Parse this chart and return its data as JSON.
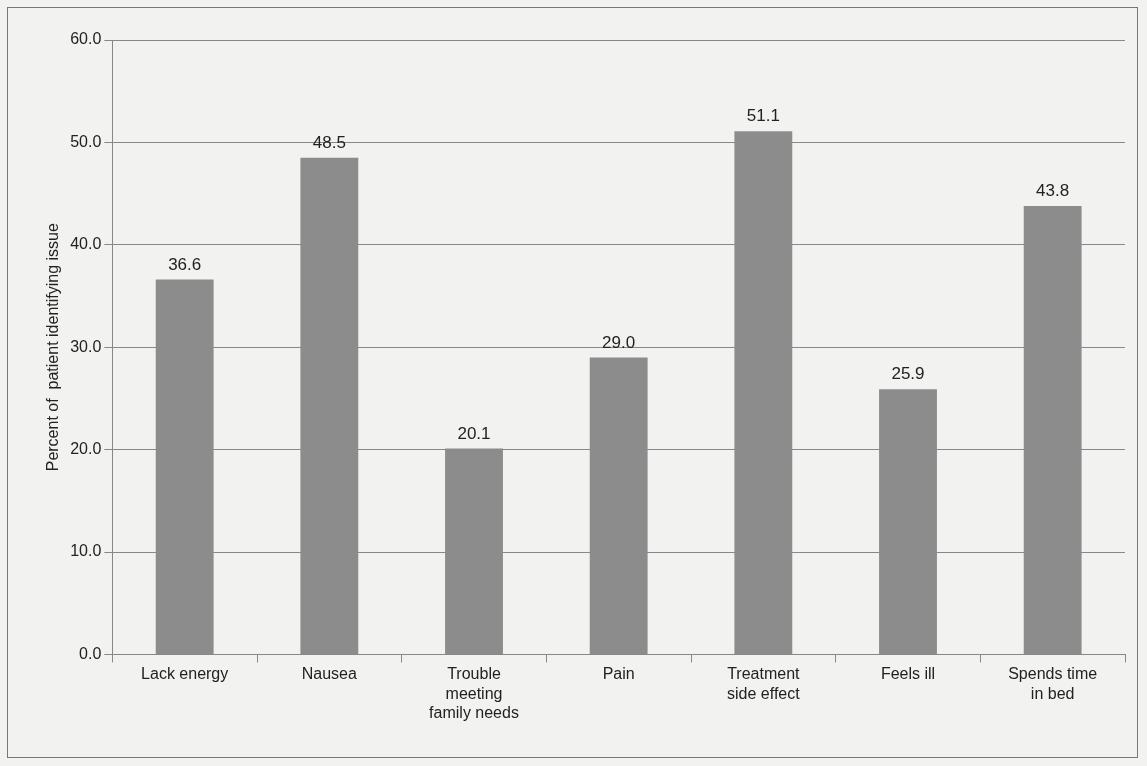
{
  "chart_data": {
    "type": "bar",
    "ylabel": "Percent of  patient identifying issue",
    "categories": [
      "Lack energy",
      "Nausea",
      "Trouble meeting family needs",
      "Pain",
      "Treatment side effect",
      "Feels ill",
      "Spends time in bed"
    ],
    "values": [
      36.6,
      48.5,
      20.1,
      29.0,
      51.1,
      25.9,
      43.8
    ],
    "value_labels": [
      "36.6",
      "48.5",
      "20.1",
      "29.0",
      "51.1",
      "25.9",
      "43.8"
    ],
    "color": "#8c8c8c",
    "ylim": [
      0,
      60
    ],
    "yticks": [
      {
        "value": 0,
        "label": "0.0"
      },
      {
        "value": 10,
        "label": "10.0"
      },
      {
        "value": 20,
        "label": "20.0"
      },
      {
        "value": 30,
        "label": "30.0"
      },
      {
        "value": 40,
        "label": "40.0"
      },
      {
        "value": 50,
        "label": "50.0"
      },
      {
        "value": 60,
        "label": "60.0"
      }
    ],
    "grid": "y",
    "legend": false
  }
}
